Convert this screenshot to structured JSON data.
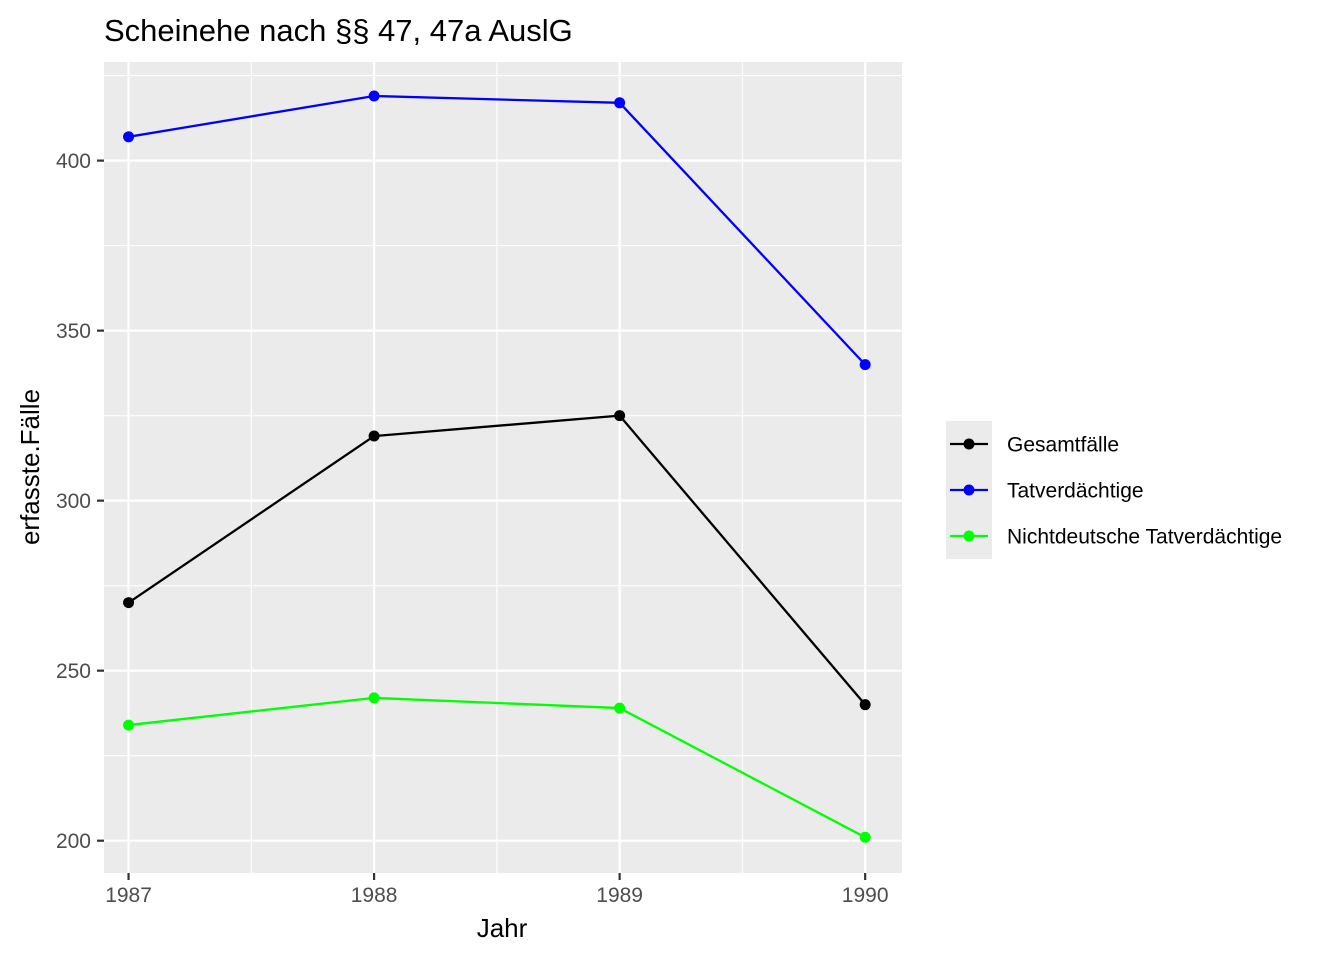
{
  "chart_data": {
    "type": "line",
    "title": "Scheinehe nach §§ 47, 47a AuslG",
    "xlabel": "Jahr",
    "ylabel": "erfasste.Fälle",
    "x": [
      1987,
      1988,
      1989,
      1990
    ],
    "x_tick_labels": [
      "1987",
      "1988",
      "1989",
      "1990"
    ],
    "xlim": [
      1986.9,
      1990.15
    ],
    "y_ticks": [
      200,
      250,
      300,
      350,
      400
    ],
    "y_tick_labels": [
      "200",
      "250",
      "300",
      "350",
      "400"
    ],
    "ylim": [
      190.5,
      429
    ],
    "grid": true,
    "legend_position": "right",
    "series": [
      {
        "name": "Gesamtfälle",
        "color": "#000000",
        "values": [
          270,
          319,
          325,
          240
        ]
      },
      {
        "name": "Tatverdächtige",
        "color": "#0000ff",
        "values": [
          407,
          419,
          417,
          340
        ]
      },
      {
        "name": "Nichtdeutsche Tatverdächtige",
        "color": "#00ff00",
        "values": [
          234,
          242,
          239,
          201
        ]
      }
    ]
  }
}
